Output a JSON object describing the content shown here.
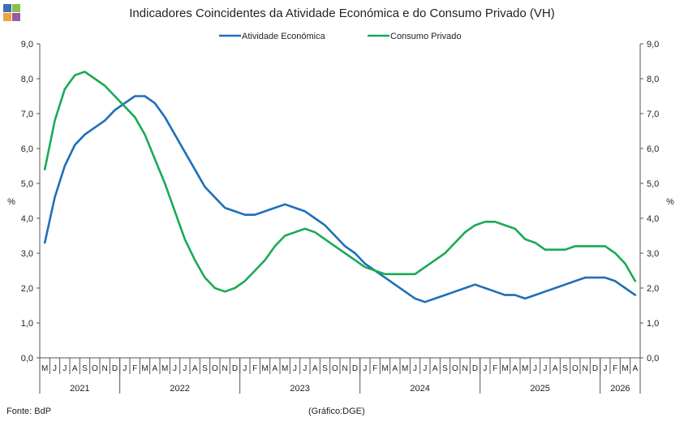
{
  "header": {
    "title": "Indicadores Coincidentes da Atividade Económica e do Consumo Privado (VH)"
  },
  "footer": {
    "source": "Fonte: BdP",
    "credit": "(Gráfico:DGE)"
  },
  "logo_colors": [
    "#3f6fb4",
    "#8cc04b",
    "#f2a23a",
    "#9a5aa6"
  ],
  "chart_data": {
    "type": "line",
    "ylabel_left": "%",
    "ylabel_right": "%",
    "ylim": [
      0,
      9
    ],
    "yticks": [
      "0,0",
      "1,0",
      "2,0",
      "3,0",
      "4,0",
      "5,0",
      "6,0",
      "7,0",
      "8,0",
      "9,0"
    ],
    "months": [
      "M",
      "J",
      "J",
      "A",
      "S",
      "O",
      "N",
      "D",
      "J",
      "F",
      "M",
      "A",
      "M",
      "J",
      "J",
      "A",
      "S",
      "O",
      "N",
      "D",
      "J",
      "F",
      "M",
      "A",
      "M",
      "J",
      "J",
      "A",
      "S",
      "O",
      "N",
      "D",
      "J",
      "F",
      "M",
      "A",
      "M",
      "J",
      "J",
      "A",
      "S",
      "O",
      "N",
      "D",
      "J",
      "F",
      "M",
      "A",
      "M",
      "J",
      "J",
      "A",
      "S",
      "O",
      "N",
      "D",
      "J",
      "F",
      "M",
      "A"
    ],
    "years": [
      {
        "label": "2021",
        "count": 8
      },
      {
        "label": "2022",
        "count": 12
      },
      {
        "label": "2023",
        "count": 12
      },
      {
        "label": "2024",
        "count": 12
      },
      {
        "label": "2025",
        "count": 12
      },
      {
        "label": "2026",
        "count": 4
      }
    ],
    "legend_position": "top",
    "series": [
      {
        "name": "Atividade Económica",
        "color": "#1f6fb8",
        "values": [
          3.3,
          4.6,
          5.5,
          6.1,
          6.4,
          6.6,
          6.8,
          7.1,
          7.3,
          7.5,
          7.5,
          7.3,
          6.9,
          6.4,
          5.9,
          5.4,
          4.9,
          4.6,
          4.3,
          4.2,
          4.1,
          4.1,
          4.2,
          4.3,
          4.4,
          4.3,
          4.2,
          4.0,
          3.8,
          3.5,
          3.2,
          3.0,
          2.7,
          2.5,
          2.3,
          2.1,
          1.9,
          1.7,
          1.6,
          1.7,
          1.8,
          1.9,
          2.0,
          2.1,
          2.0,
          1.9,
          1.8,
          1.8,
          1.7,
          1.8,
          1.9,
          2.0,
          2.1,
          2.2,
          2.3,
          2.3,
          2.3,
          2.2,
          2.0,
          1.8
        ]
      },
      {
        "name": "Consumo Privado",
        "color": "#1aaa55",
        "values": [
          5.4,
          6.8,
          7.7,
          8.1,
          8.2,
          8.0,
          7.8,
          7.5,
          7.2,
          6.9,
          6.4,
          5.7,
          5.0,
          4.2,
          3.4,
          2.8,
          2.3,
          2.0,
          1.9,
          2.0,
          2.2,
          2.5,
          2.8,
          3.2,
          3.5,
          3.6,
          3.7,
          3.6,
          3.4,
          3.2,
          3.0,
          2.8,
          2.6,
          2.5,
          2.4,
          2.4,
          2.4,
          2.4,
          2.6,
          2.8,
          3.0,
          3.3,
          3.6,
          3.8,
          3.9,
          3.9,
          3.8,
          3.7,
          3.4,
          3.3,
          3.1,
          3.1,
          3.1,
          3.2,
          3.2,
          3.2,
          3.2,
          3.0,
          2.7,
          2.2
        ]
      }
    ]
  }
}
